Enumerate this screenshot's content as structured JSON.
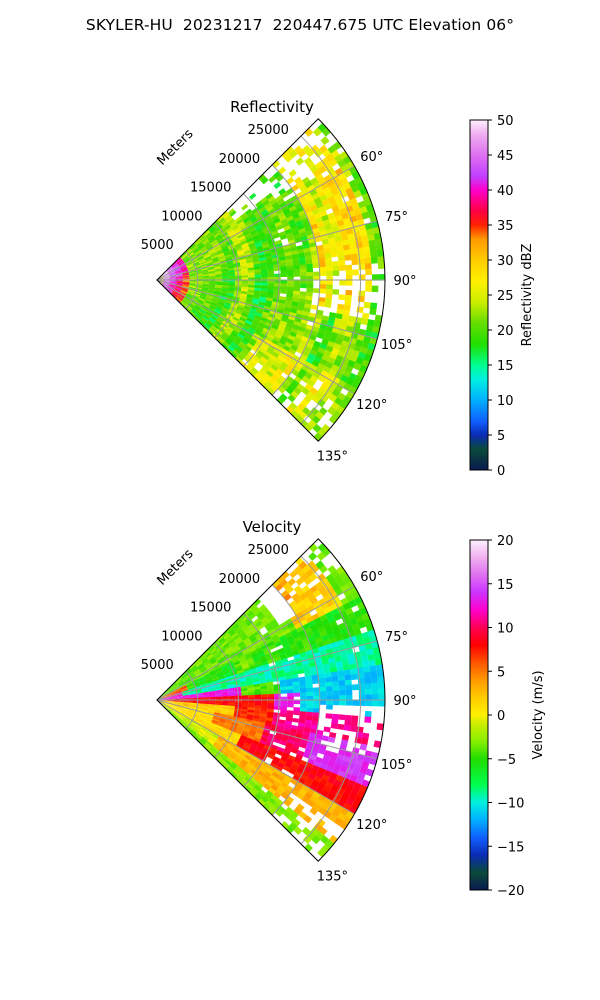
{
  "suptitle": "SKYLER-HU  20231217  220447.675 UTC Elevation 06°",
  "chart_data": [
    {
      "type": "heatmap",
      "title": "Reflectivity",
      "projection": "polar sector",
      "radial_axis_label": "Meters",
      "radial_ticks": [
        5000,
        10000,
        15000,
        20000,
        25000
      ],
      "radial_tick_labels": [
        "5000",
        "10000",
        "15000",
        "20000",
        "25000"
      ],
      "azimuth_range_deg": [
        45,
        135
      ],
      "azimuth_ticks": [
        60,
        75,
        90,
        105,
        120,
        135
      ],
      "azimuth_tick_labels": [
        "60°",
        "75°",
        "90°",
        "105°",
        "120°",
        "135°"
      ],
      "colorbar": {
        "label": "Reflectivity dBZ",
        "range": [
          0,
          50
        ],
        "ticks": [
          0,
          5,
          10,
          15,
          20,
          25,
          30,
          35,
          40,
          45,
          50
        ],
        "tick_labels": [
          "0",
          "5",
          "10",
          "15",
          "20",
          "25",
          "30",
          "35",
          "40",
          "45",
          "50"
        ],
        "stops": [
          [
            0,
            "#0a1a50"
          ],
          [
            3,
            "#0a4a3a"
          ],
          [
            5,
            "#0b2bb5"
          ],
          [
            7,
            "#1060ff"
          ],
          [
            10,
            "#00b0ff"
          ],
          [
            13,
            "#00f0e0"
          ],
          [
            15,
            "#00ff90"
          ],
          [
            18,
            "#22e000"
          ],
          [
            21,
            "#66dd00"
          ],
          [
            24,
            "#ccee00"
          ],
          [
            27,
            "#fff000"
          ],
          [
            30,
            "#ffcc00"
          ],
          [
            33,
            "#ff9900"
          ],
          [
            35,
            "#ff2200"
          ],
          [
            37,
            "#ff0044"
          ],
          [
            40,
            "#ff00cc"
          ],
          [
            42,
            "#c040ff"
          ],
          [
            45,
            "#e070f0"
          ],
          [
            48,
            "#f0b0f0"
          ],
          [
            50,
            "#fff0ff"
          ]
        ]
      }
    },
    {
      "type": "heatmap",
      "title": "Velocity",
      "projection": "polar sector",
      "radial_axis_label": "Meters",
      "radial_ticks": [
        5000,
        10000,
        15000,
        20000,
        25000
      ],
      "radial_tick_labels": [
        "5000",
        "10000",
        "15000",
        "20000",
        "25000"
      ],
      "azimuth_range_deg": [
        45,
        135
      ],
      "azimuth_ticks": [
        60,
        75,
        90,
        105,
        120,
        135
      ],
      "azimuth_tick_labels": [
        "60°",
        "75°",
        "90°",
        "105°",
        "120°",
        "135°"
      ],
      "colorbar": {
        "label": "Velocity (m/s)",
        "range": [
          -20,
          20
        ],
        "ticks": [
          -20,
          -15,
          -10,
          -5,
          0,
          5,
          10,
          15,
          20
        ],
        "tick_labels": [
          "−20",
          "−15",
          "−10",
          "−5",
          "0",
          "5",
          "10",
          "15",
          "20"
        ],
        "stops": [
          [
            -20,
            "#0a1a50"
          ],
          [
            -18,
            "#0a4a3a"
          ],
          [
            -16,
            "#0b2bb5"
          ],
          [
            -14,
            "#1060ff"
          ],
          [
            -12,
            "#00b0ff"
          ],
          [
            -10,
            "#00f0e0"
          ],
          [
            -8,
            "#00ff50"
          ],
          [
            -5,
            "#22dd00"
          ],
          [
            -3,
            "#88ee00"
          ],
          [
            -1,
            "#ccee00"
          ],
          [
            0,
            "#fff000"
          ],
          [
            2,
            "#ffcc00"
          ],
          [
            4,
            "#ff9900"
          ],
          [
            6,
            "#ff5500"
          ],
          [
            8,
            "#ff0000"
          ],
          [
            10,
            "#ff0055"
          ],
          [
            12,
            "#ff00cc"
          ],
          [
            14,
            "#cc33ff"
          ],
          [
            16,
            "#e070f0"
          ],
          [
            18,
            "#f0b0f0"
          ],
          [
            20,
            "#fff0ff"
          ]
        ]
      }
    }
  ]
}
